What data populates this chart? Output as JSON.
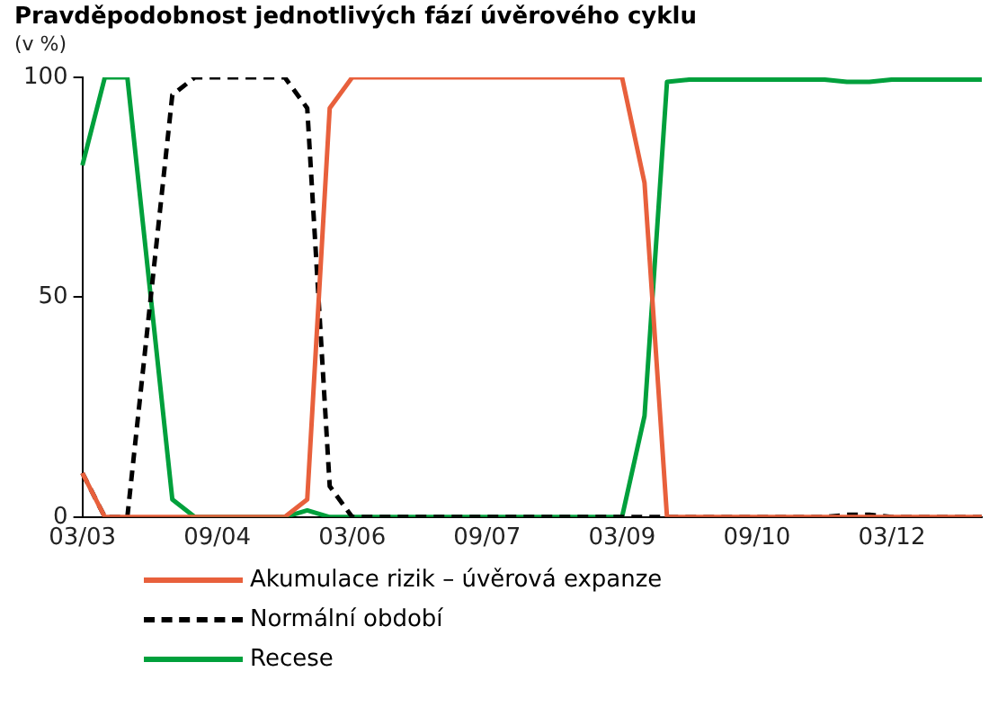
{
  "chart_data": {
    "type": "line",
    "title": "Pravděpodobnost jednotlivých fází úvěrového cyklu",
    "subtitle": "(v %)",
    "categories": [
      "03/03",
      null,
      null,
      null,
      null,
      null,
      "09/04",
      null,
      null,
      null,
      null,
      null,
      "03/06",
      null,
      null,
      null,
      null,
      null,
      "09/07",
      null,
      null,
      null,
      null,
      null,
      "03/09",
      null,
      null,
      null,
      null,
      null,
      "09/10",
      null,
      null,
      null,
      null,
      null,
      "03/12",
      null,
      null,
      null,
      null
    ],
    "series": [
      {
        "name": "Akumulace rizik – úvěrová expanze",
        "color": "#e8603c",
        "line_style": "solid",
        "values": [
          10,
          0,
          0,
          0,
          0,
          0,
          0,
          0,
          0,
          0,
          4,
          93,
          100,
          100,
          100,
          100,
          100,
          100,
          100,
          100,
          100,
          100,
          100,
          100,
          100,
          76,
          0,
          0,
          0,
          0,
          0,
          0,
          0,
          0,
          0,
          0,
          0,
          0,
          0,
          0,
          0
        ]
      },
      {
        "name": "Normální období",
        "color": "#000000",
        "line_style": "dashed",
        "values": [
          10,
          0,
          0,
          48,
          96,
          100,
          100,
          100,
          100,
          100,
          93,
          7,
          0,
          0,
          0,
          0,
          0,
          0,
          0,
          0,
          0,
          0,
          0,
          0,
          0,
          0,
          0,
          0,
          0,
          0,
          0,
          0,
          0,
          0,
          0.5,
          0.5,
          0,
          0,
          0,
          0,
          0
        ]
      },
      {
        "name": "Recese",
        "color": "#00a03c",
        "line_style": "solid",
        "values": [
          80,
          100,
          100,
          52,
          4,
          0,
          0,
          0,
          0,
          0,
          1.5,
          0,
          0,
          0,
          0,
          0,
          0,
          0,
          0,
          0,
          0,
          0,
          0,
          0,
          0,
          23,
          99,
          99.5,
          99.5,
          99.5,
          99.5,
          99.5,
          99.5,
          99.5,
          99,
          99,
          99.5,
          99.5,
          99.5,
          99.5,
          99.5
        ]
      }
    ],
    "ylim": [
      0,
      100
    ],
    "yticks": [
      0,
      50,
      100
    ],
    "grid": false,
    "legend": "bottom",
    "marker": "none"
  }
}
